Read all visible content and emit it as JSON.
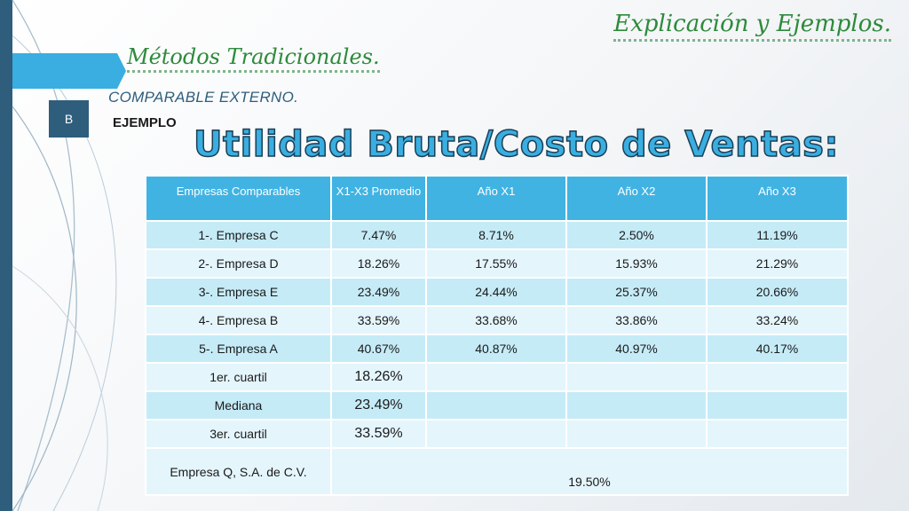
{
  "header": {
    "section_title": "Explicación y Ejemplos.",
    "title": "Métodos Tradicionales.",
    "subtitle": "COMPARABLE EXTERNO.",
    "badge": "B",
    "example_label": "EJEMPLO",
    "main_heading": "Utilidad Bruta/Costo de Ventas:"
  },
  "table": {
    "columns": [
      "Empresas Comparables",
      "X1-X3 Promedio",
      "Año X1",
      "Año X2",
      "Año X3"
    ],
    "rows": [
      [
        "1-. Empresa C",
        "7.47%",
        "8.71%",
        "2.50%",
        "11.19%"
      ],
      [
        "2-. Empresa D",
        "18.26%",
        "17.55%",
        "15.93%",
        "21.29%"
      ],
      [
        "3-. Empresa E",
        "23.49%",
        "24.44%",
        "25.37%",
        "20.66%"
      ],
      [
        "4-. Empresa B",
        "33.59%",
        "33.68%",
        "33.86%",
        "33.24%"
      ],
      [
        "5-. Empresa A",
        "40.67%",
        "40.87%",
        "40.97%",
        "40.17%"
      ]
    ],
    "stats": [
      [
        "1er. cuartil",
        "18.26%"
      ],
      [
        "Mediana",
        "23.49%"
      ],
      [
        "3er. cuartil",
        "33.59%"
      ]
    ],
    "company_q": {
      "label": "Empresa Q, S.A. de C.V.",
      "value": "19.50%"
    }
  },
  "colors": {
    "accent": "#3aaee0",
    "header_bg": "#40b3e3",
    "row_dark": "#c5ebf7",
    "row_light": "#e4f5fc",
    "sidebar": "#2e5e7c",
    "title_green": "#2e8a3c"
  }
}
